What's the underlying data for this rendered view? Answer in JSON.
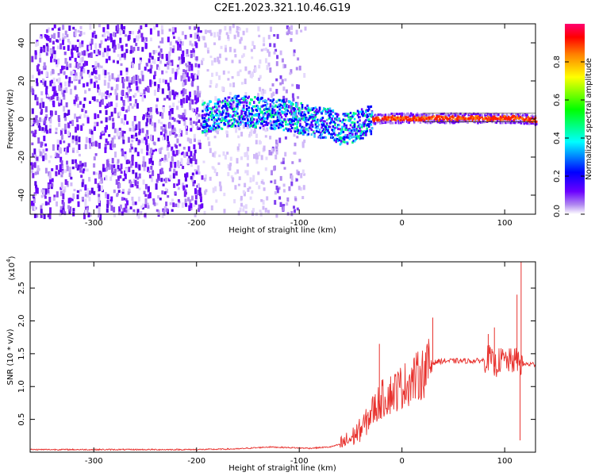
{
  "title": "C2E1.2023.321.10.46.G19",
  "chart_data": [
    {
      "type": "heatmap",
      "xlabel": "Height of straight line (km)",
      "ylabel": "Frequency (Hz)",
      "xlim": [
        -362,
        130
      ],
      "ylim": [
        -50,
        50
      ],
      "xticks": [
        "-300",
        "-200",
        "-100",
        "0",
        "100"
      ],
      "xtick_values": [
        -300,
        -200,
        -100,
        0,
        100
      ],
      "yticks": [
        "-40",
        "-20",
        "0",
        "20",
        "40"
      ],
      "ytick_values": [
        -40,
        -20,
        0,
        20,
        40
      ],
      "colorbar": {
        "label": "Normalized spectral amplitude",
        "range": [
          0,
          1
        ],
        "ticks": [
          "0.0",
          "0.2",
          "0.4",
          "0.6",
          "0.8"
        ],
        "tick_values": [
          0.0,
          0.2,
          0.4,
          0.6,
          0.8
        ],
        "colormap": [
          "#ffffff",
          "#b088f0",
          "#6a00ff",
          "#0000ff",
          "#00ffff",
          "#00ff00",
          "#ffff00",
          "#ff8000",
          "#ff0000",
          "#ff0070"
        ]
      },
      "noise_region_x": [
        -362,
        -195
      ],
      "signal_track": {
        "x": [
          -195,
          -180,
          -160,
          -140,
          -120,
          -100,
          -85,
          -70,
          -60,
          -50,
          -40,
          -30,
          -20,
          0,
          20,
          50,
          80,
          100,
          112,
          130
        ],
        "y": [
          1,
          3,
          5,
          4,
          3,
          1,
          -1,
          -2,
          -5,
          -4,
          -2,
          0,
          1,
          1,
          1,
          1,
          1,
          1,
          1,
          0
        ]
      }
    },
    {
      "type": "line",
      "xlabel": "Height of straight line (km)",
      "ylabel": "SNR (10 * v/v)",
      "yscale_label": "(x10",
      "yscale_exp": "4",
      "yscale_close": ")",
      "xlim": [
        -362,
        130
      ],
      "ylim": [
        0,
        2.9
      ],
      "xticks": [
        "-300",
        "-200",
        "-100",
        "0",
        "100"
      ],
      "xtick_values": [
        -300,
        -200,
        -100,
        0,
        100
      ],
      "yticks": [
        "0.5",
        "1.0",
        "1.5",
        "2.0",
        "2.5"
      ],
      "ytick_values": [
        0.5,
        1.0,
        1.5,
        2.0,
        2.5
      ],
      "color": "#e8322e",
      "series": [
        {
          "x": [
            -362,
            -300,
            -250,
            -200,
            -160,
            -140,
            -130,
            -110,
            -90,
            -70,
            -60,
            -50,
            -45,
            -40,
            -35,
            -30,
            -25,
            -20,
            -15,
            -10,
            -5,
            0,
            5,
            10,
            15,
            20,
            25,
            30,
            35,
            40,
            50,
            60,
            70,
            80,
            85,
            90,
            95,
            100,
            105,
            110,
            113,
            116,
            120,
            130
          ],
          "y": [
            0.04,
            0.04,
            0.04,
            0.04,
            0.05,
            0.07,
            0.08,
            0.07,
            0.06,
            0.08,
            0.12,
            0.2,
            0.28,
            0.35,
            0.45,
            0.6,
            0.7,
            0.8,
            0.85,
            0.9,
            0.95,
            1.0,
            1.05,
            1.1,
            1.15,
            1.2,
            1.3,
            1.36,
            1.38,
            1.39,
            1.39,
            1.39,
            1.39,
            1.4,
            1.45,
            1.3,
            1.4,
            1.4,
            1.38,
            1.4,
            1.4,
            1.35,
            1.34,
            1.34
          ]
        }
      ],
      "spikes": [
        {
          "x": -22,
          "y": 1.65
        },
        {
          "x": 30,
          "y": 2.05
        },
        {
          "x": 84,
          "y": 1.8
        },
        {
          "x": 90,
          "y": 1.9
        },
        {
          "x": 112,
          "y": 2.4
        },
        {
          "x": 116,
          "y": 2.9
        },
        {
          "x": 115,
          "y": 0.18
        }
      ]
    }
  ]
}
